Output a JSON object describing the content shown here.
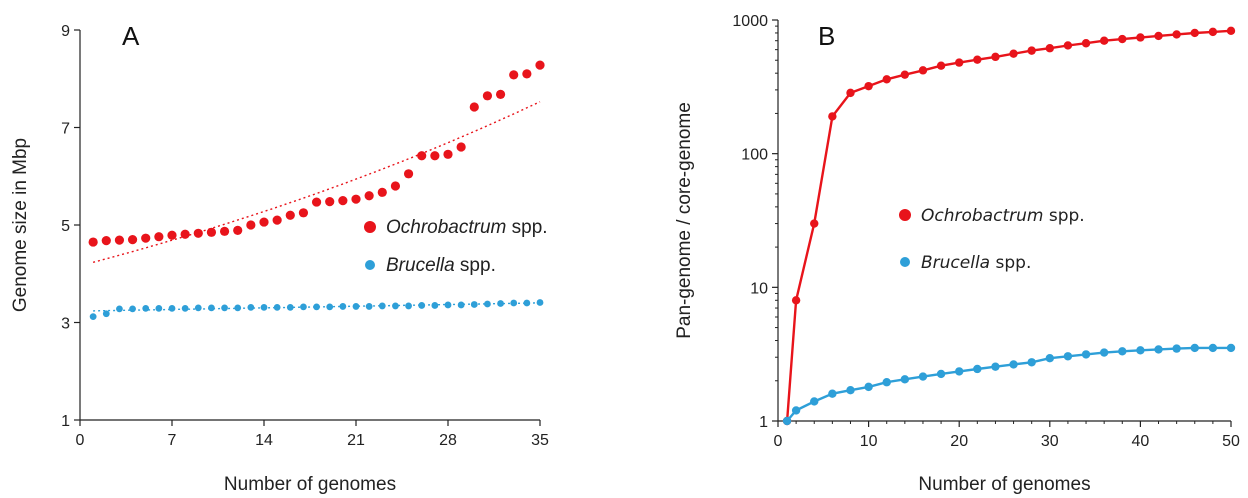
{
  "chart_data": [
    {
      "panel_label": "A",
      "type": "scatter",
      "xlabel": "Number of genomes",
      "ylabel": "Genome size in Mbp",
      "xlim": [
        0,
        35
      ],
      "ylim": [
        1,
        9
      ],
      "xticks": [
        0,
        7,
        14,
        21,
        28,
        35
      ],
      "yticks": [
        1,
        3,
        5,
        7,
        9
      ],
      "legend_placement": "center-right",
      "series": [
        {
          "legend_italic": "Ochrobactrum",
          "legend_suffix": " spp.",
          "color": "#e8141b",
          "trendline": "dotted",
          "x": [
            1,
            2,
            3,
            4,
            5,
            6,
            7,
            8,
            9,
            10,
            11,
            12,
            13,
            14,
            15,
            16,
            17,
            18,
            19,
            20,
            21,
            22,
            23,
            24,
            25,
            26,
            27,
            28,
            29,
            30,
            31,
            32,
            33,
            34,
            35
          ],
          "y": [
            4.65,
            4.68,
            4.69,
            4.7,
            4.73,
            4.76,
            4.79,
            4.81,
            4.83,
            4.85,
            4.87,
            4.89,
            5.0,
            5.06,
            5.1,
            5.2,
            5.25,
            5.47,
            5.48,
            5.5,
            5.53,
            5.6,
            5.67,
            5.8,
            6.05,
            6.42,
            6.42,
            6.45,
            6.6,
            7.42,
            7.65,
            7.68,
            8.08,
            8.1,
            8.28
          ]
        },
        {
          "legend_italic": "Brucella",
          "legend_suffix": " spp.",
          "color": "#2e9fd8",
          "trendline": "dotted",
          "x": [
            1,
            2,
            3,
            4,
            5,
            6,
            7,
            8,
            9,
            10,
            11,
            12,
            13,
            14,
            15,
            16,
            17,
            18,
            19,
            20,
            21,
            22,
            23,
            24,
            25,
            26,
            27,
            28,
            29,
            30,
            31,
            32,
            33,
            34,
            35
          ],
          "y": [
            3.12,
            3.18,
            3.28,
            3.28,
            3.29,
            3.29,
            3.29,
            3.29,
            3.3,
            3.3,
            3.3,
            3.3,
            3.31,
            3.31,
            3.31,
            3.31,
            3.32,
            3.32,
            3.32,
            3.33,
            3.33,
            3.33,
            3.34,
            3.34,
            3.34,
            3.35,
            3.35,
            3.36,
            3.36,
            3.37,
            3.38,
            3.39,
            3.4,
            3.4,
            3.41
          ]
        }
      ]
    },
    {
      "panel_label": "B",
      "type": "line",
      "xlabel": "Number of genomes",
      "ylabel": "Pan-genome / core-genome",
      "xlim": [
        0,
        50
      ],
      "ylim": [
        1,
        1000
      ],
      "yscale": "log",
      "xticks": [
        0,
        10,
        20,
        30,
        40,
        50
      ],
      "yticks": [
        1,
        10,
        100,
        1000
      ],
      "legend_placement": "center-right",
      "series": [
        {
          "legend_italic": "Ochrobactrum",
          "legend_suffix": " spp.",
          "color": "#e8141b",
          "x": [
            1,
            2,
            4,
            6,
            8,
            10,
            12,
            14,
            16,
            18,
            20,
            22,
            24,
            26,
            28,
            30,
            32,
            34,
            36,
            38,
            40,
            42,
            44,
            46,
            48,
            50
          ],
          "y": [
            1,
            8,
            30,
            190,
            285,
            320,
            360,
            390,
            420,
            455,
            480,
            505,
            530,
            560,
            590,
            615,
            645,
            670,
            700,
            720,
            740,
            760,
            780,
            800,
            815,
            830
          ]
        },
        {
          "legend_italic": "Brucella",
          "legend_suffix": " spp.",
          "color": "#2e9fd8",
          "x": [
            1,
            2,
            4,
            6,
            8,
            10,
            12,
            14,
            16,
            18,
            20,
            22,
            24,
            26,
            28,
            30,
            32,
            34,
            36,
            38,
            40,
            42,
            44,
            46,
            48,
            50
          ],
          "y": [
            1,
            1.2,
            1.4,
            1.6,
            1.7,
            1.8,
            1.95,
            2.05,
            2.15,
            2.25,
            2.35,
            2.45,
            2.55,
            2.65,
            2.75,
            2.95,
            3.05,
            3.15,
            3.25,
            3.32,
            3.38,
            3.43,
            3.48,
            3.52,
            3.52,
            3.52
          ]
        }
      ]
    }
  ]
}
